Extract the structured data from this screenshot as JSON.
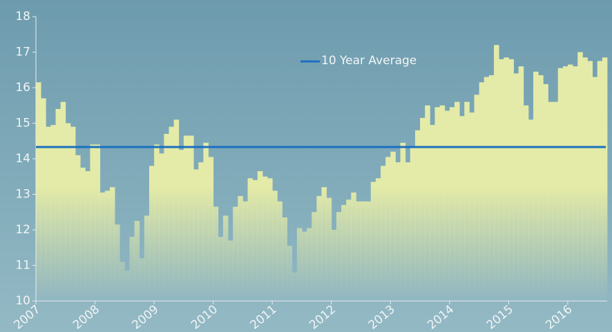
{
  "chart_data": {
    "type": "bar",
    "categories": [
      "2007",
      null,
      null,
      null,
      null,
      null,
      null,
      null,
      null,
      null,
      null,
      null,
      "2008",
      null,
      null,
      null,
      null,
      null,
      null,
      null,
      null,
      null,
      null,
      null,
      "2009",
      null,
      null,
      null,
      null,
      null,
      null,
      null,
      null,
      null,
      null,
      null,
      "2010",
      null,
      null,
      null,
      null,
      null,
      null,
      null,
      null,
      null,
      null,
      null,
      "2011",
      null,
      null,
      null,
      null,
      null,
      null,
      null,
      null,
      null,
      null,
      null,
      "2012",
      null,
      null,
      null,
      null,
      null,
      null,
      null,
      null,
      null,
      null,
      null,
      "2013",
      null,
      null,
      null,
      null,
      null,
      null,
      null,
      null,
      null,
      null,
      null,
      "2014",
      null,
      null,
      null,
      null,
      null,
      null,
      null,
      null,
      null,
      null,
      null,
      "2015",
      null,
      null,
      null,
      null,
      null,
      null,
      null,
      null,
      null,
      null,
      null,
      "2016",
      null,
      null,
      null,
      null,
      null,
      null,
      null
    ],
    "values": [
      16.15,
      15.7,
      14.9,
      14.95,
      15.4,
      15.6,
      15.0,
      14.9,
      14.1,
      13.75,
      13.65,
      14.4,
      14.4,
      13.05,
      13.1,
      13.2,
      12.15,
      11.1,
      10.85,
      11.8,
      12.25,
      11.2,
      12.4,
      13.8,
      14.4,
      14.15,
      14.7,
      14.9,
      15.1,
      14.25,
      14.65,
      14.65,
      13.7,
      13.9,
      14.45,
      14.05,
      12.65,
      11.8,
      12.4,
      11.7,
      12.65,
      12.95,
      12.8,
      13.45,
      13.4,
      13.65,
      13.5,
      13.45,
      13.1,
      12.8,
      12.35,
      11.55,
      10.8,
      12.05,
      11.95,
      12.05,
      12.5,
      12.95,
      13.2,
      12.9,
      12.0,
      12.5,
      12.7,
      12.85,
      13.05,
      12.8,
      12.8,
      12.8,
      13.35,
      13.45,
      13.8,
      14.05,
      14.2,
      13.9,
      14.45,
      13.9,
      14.3,
      14.8,
      15.15,
      15.5,
      14.95,
      15.45,
      15.5,
      15.35,
      15.45,
      15.6,
      15.2,
      15.6,
      15.3,
      15.8,
      16.15,
      16.3,
      16.35,
      17.2,
      16.8,
      16.85,
      16.8,
      16.4,
      16.6,
      15.5,
      15.1,
      16.45,
      16.35,
      16.1,
      15.6,
      15.6,
      16.55,
      16.6,
      16.65,
      16.6,
      17.0,
      16.85,
      16.75,
      16.3,
      16.75,
      16.85
    ],
    "color": "#e4eba8",
    "reference_lines": [
      {
        "name": "10 Year Average",
        "value": 14.33,
        "color": "#1a6fc0"
      }
    ],
    "ylim": [
      10,
      18
    ],
    "yticks": [
      10,
      11,
      12,
      13,
      14,
      15,
      16,
      17,
      18
    ]
  }
}
